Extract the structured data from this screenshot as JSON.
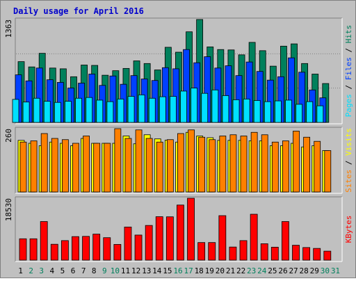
{
  "title": "Daily usage for April 2016",
  "colors": {
    "background": "#c0c0c0",
    "title": "#0000cc",
    "hits": "#00805c",
    "files": "#0040ff",
    "pages": "#00e0ff",
    "visits": "#ffff00",
    "sites": "#ff8000",
    "kbytes": "#ff0000",
    "weekend_label": "#00805c",
    "weekday_label": "#000000"
  },
  "chart_data": [
    {
      "type": "bar",
      "panel": "hits-files-pages",
      "ylabel_parts": [
        {
          "text": "Pages",
          "color": "#00e0ff"
        },
        {
          "text": " / ",
          "color": "#000000"
        },
        {
          "text": "Files",
          "color": "#0040ff"
        },
        {
          "text": " / ",
          "color": "#000000"
        },
        {
          "text": "Hits",
          "color": "#00805c"
        }
      ],
      "max_label": "1363",
      "ylim": [
        0,
        1363
      ],
      "categories": [
        "1",
        "2",
        "3",
        "4",
        "5",
        "6",
        "7",
        "8",
        "9",
        "10",
        "11",
        "12",
        "13",
        "14",
        "15",
        "16",
        "17",
        "18",
        "19",
        "20",
        "21",
        "22",
        "23",
        "24",
        "25",
        "26",
        "27",
        "28",
        "29",
        "30",
        "31"
      ],
      "series": [
        {
          "name": "Hits",
          "values": [
            805,
            735,
            915,
            720,
            710,
            605,
            760,
            755,
            625,
            685,
            715,
            815,
            780,
            695,
            995,
            930,
            1200,
            1363,
            1000,
            965,
            960,
            895,
            1060,
            950,
            745,
            1010,
            1040,
            780,
            640,
            515,
            0
          ]
        },
        {
          "name": "Files",
          "values": [
            630,
            550,
            720,
            565,
            530,
            455,
            520,
            640,
            490,
            615,
            505,
            620,
            575,
            555,
            725,
            710,
            965,
            790,
            870,
            720,
            750,
            620,
            800,
            675,
            560,
            605,
            855,
            665,
            430,
            325,
            0
          ]
        },
        {
          "name": "Pages",
          "values": [
            305,
            270,
            320,
            280,
            265,
            280,
            320,
            330,
            295,
            275,
            310,
            345,
            365,
            320,
            340,
            345,
            415,
            455,
            385,
            430,
            355,
            300,
            310,
            290,
            275,
            285,
            295,
            240,
            275,
            220,
            0
          ]
        }
      ]
    },
    {
      "type": "bar",
      "panel": "visits-sites",
      "ylabel_parts": [
        {
          "text": "Sites",
          "color": "#ff8000"
        },
        {
          "text": " / ",
          "color": "#000000"
        },
        {
          "text": "Visits",
          "color": "#ffff00"
        }
      ],
      "max_label": "260",
      "ylim": [
        0,
        260
      ],
      "categories": [
        "1",
        "2",
        "3",
        "4",
        "5",
        "6",
        "7",
        "8",
        "9",
        "10",
        "11",
        "12",
        "13",
        "14",
        "15",
        "16",
        "17",
        "18",
        "19",
        "20",
        "21",
        "22",
        "23",
        "24",
        "25",
        "26",
        "27",
        "28",
        "29",
        "30",
        "31"
      ],
      "series": [
        {
          "name": "Visits",
          "values": [
            212,
            200,
            190,
            205,
            200,
            190,
            220,
            200,
            200,
            200,
            230,
            198,
            235,
            218,
            213,
            205,
            245,
            230,
            223,
            212,
            212,
            212,
            210,
            210,
            190,
            190,
            200,
            185,
            190,
            170,
            0
          ]
        },
        {
          "name": "Sites",
          "values": [
            205,
            210,
            240,
            220,
            215,
            200,
            230,
            200,
            200,
            260,
            220,
            255,
            220,
            205,
            215,
            240,
            255,
            225,
            215,
            230,
            235,
            230,
            245,
            235,
            205,
            210,
            250,
            225,
            208,
            170,
            0
          ]
        }
      ]
    },
    {
      "type": "bar",
      "panel": "kbytes",
      "ylabel": "KBytes",
      "max_label": "18530",
      "ylim": [
        0,
        18530
      ],
      "categories": [
        "1",
        "2",
        "3",
        "4",
        "5",
        "6",
        "7",
        "8",
        "9",
        "10",
        "11",
        "12",
        "13",
        "14",
        "15",
        "16",
        "17",
        "18",
        "19",
        "20",
        "21",
        "22",
        "23",
        "24",
        "25",
        "26",
        "27",
        "28",
        "29",
        "30",
        "31"
      ],
      "series": [
        {
          "name": "KBytes",
          "values": [
            6395,
            6395,
            11555,
            4750,
            5850,
            7045,
            7115,
            7790,
            6725,
            4710,
            9915,
            7510,
            10385,
            13005,
            12970,
            16495,
            18530,
            5270,
            5270,
            13320,
            3925,
            5850,
            13740,
            4910,
            3880,
            11555,
            4460,
            3775,
            3510,
            2690,
            0
          ]
        }
      ]
    }
  ],
  "x_labels": [
    "1",
    "2",
    "3",
    "4",
    "5",
    "6",
    "7",
    "8",
    "9",
    "10",
    "11",
    "12",
    "13",
    "14",
    "15",
    "16",
    "17",
    "18",
    "19",
    "20",
    "21",
    "22",
    "23",
    "24",
    "25",
    "26",
    "27",
    "28",
    "29",
    "30",
    "31"
  ],
  "weekend_days": [
    "2",
    "3",
    "9",
    "10",
    "16",
    "17",
    "23",
    "24",
    "30",
    "31"
  ]
}
